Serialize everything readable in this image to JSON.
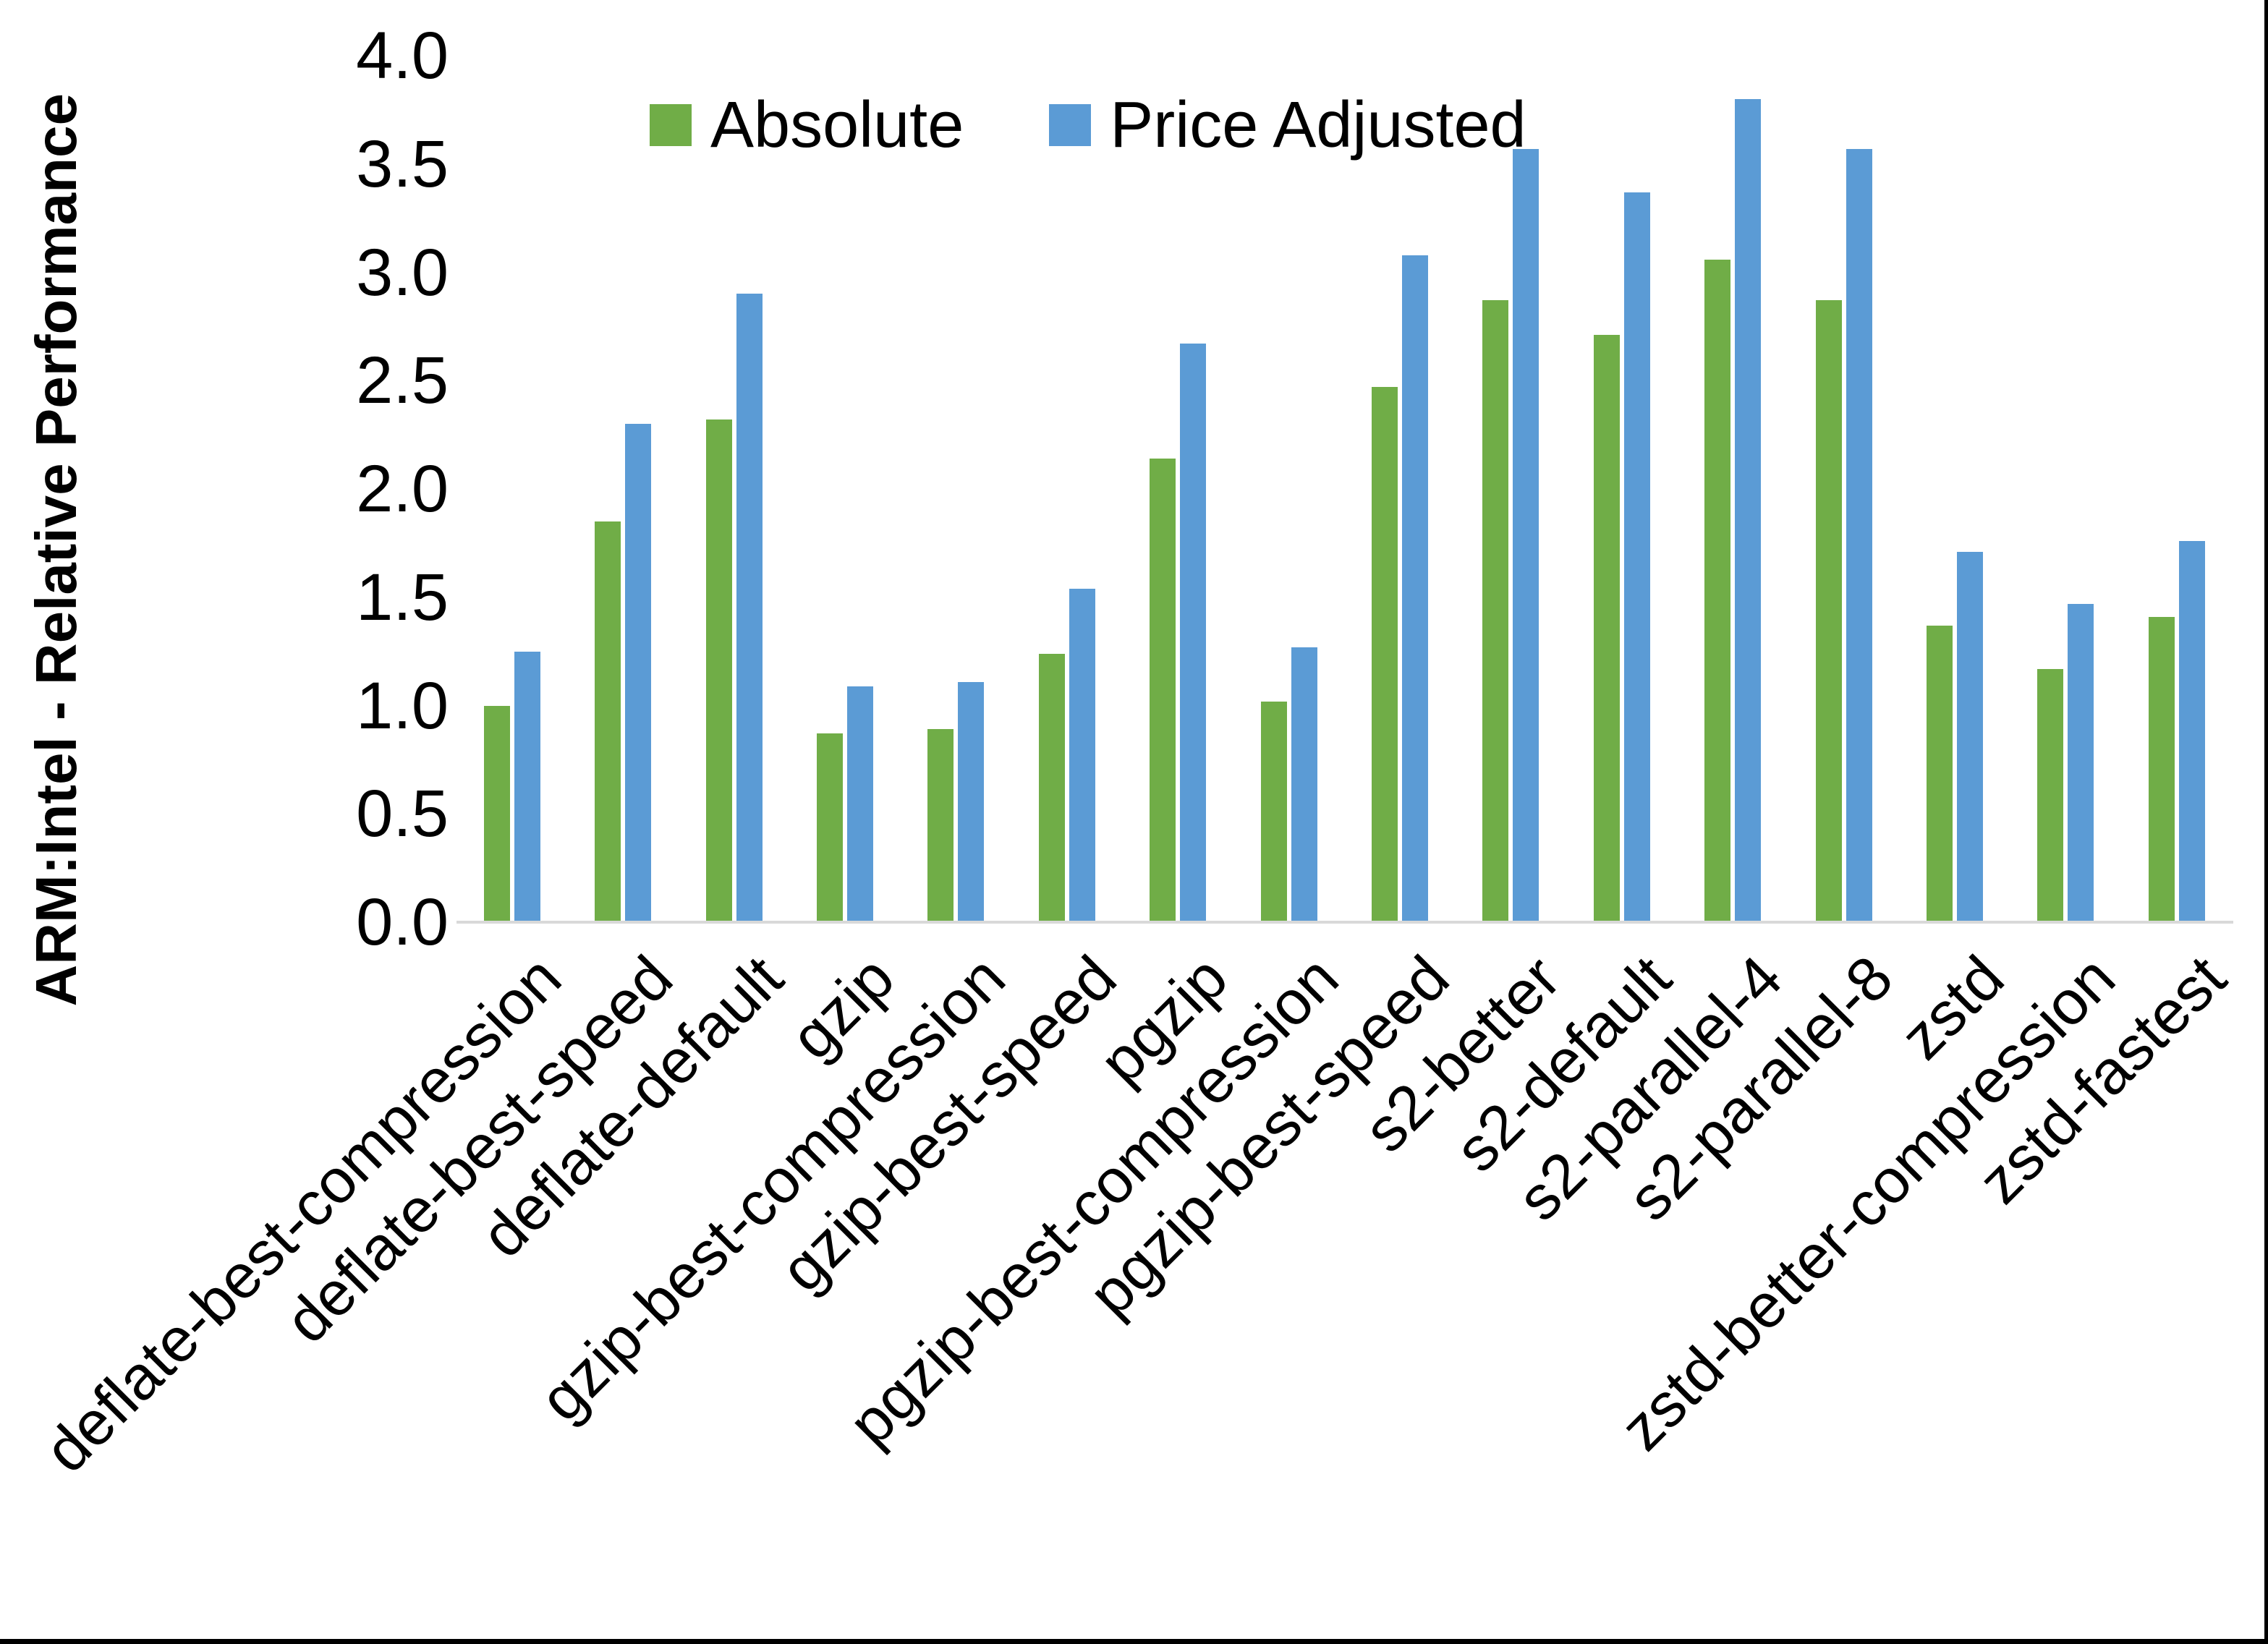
{
  "page": {
    "background": "#ffffff",
    "edge_color": "#000000",
    "axis_line_color": "#d9d9d9"
  },
  "chart_data": {
    "type": "bar",
    "title": "",
    "xlabel": "",
    "ylabel": "ARM:Intel - Relative Performance",
    "ylim": [
      0.0,
      4.0
    ],
    "ytick_step": 0.5,
    "yticks": [
      0.0,
      0.5,
      1.0,
      1.5,
      2.0,
      2.5,
      3.0,
      3.5,
      4.0
    ],
    "ytick_labels": [
      "0.0",
      "0.5",
      "1.0",
      "1.5",
      "2.0",
      "2.5",
      "3.0",
      "3.5",
      "4.0"
    ],
    "grid": false,
    "legend_position": "top-center",
    "categories": [
      "deflate-best-compression",
      "deflate-best-speed",
      "deflate-default",
      "gzip",
      "gzip-best-compression",
      "gzip-best-speed",
      "pgzip",
      "pgzip-best-compression",
      "pgzip-best-speed",
      "s2-better",
      "s2-default",
      "s2-parallel-4",
      "s2-parallel-8",
      "zstd",
      "zstd-better-compression",
      "zstd-fastest"
    ],
    "series": [
      {
        "name": "Absolute",
        "color": "#70AD47",
        "values": [
          1.0,
          1.85,
          2.32,
          0.87,
          0.89,
          1.24,
          2.14,
          1.02,
          2.47,
          2.87,
          2.71,
          3.06,
          2.87,
          1.37,
          1.17,
          1.41
        ]
      },
      {
        "name": "Price Adjusted",
        "color": "#5B9BD5",
        "values": [
          1.25,
          2.3,
          2.9,
          1.09,
          1.11,
          1.54,
          2.67,
          1.27,
          3.08,
          3.57,
          3.37,
          3.8,
          3.57,
          1.71,
          1.47,
          1.76
        ]
      }
    ]
  }
}
